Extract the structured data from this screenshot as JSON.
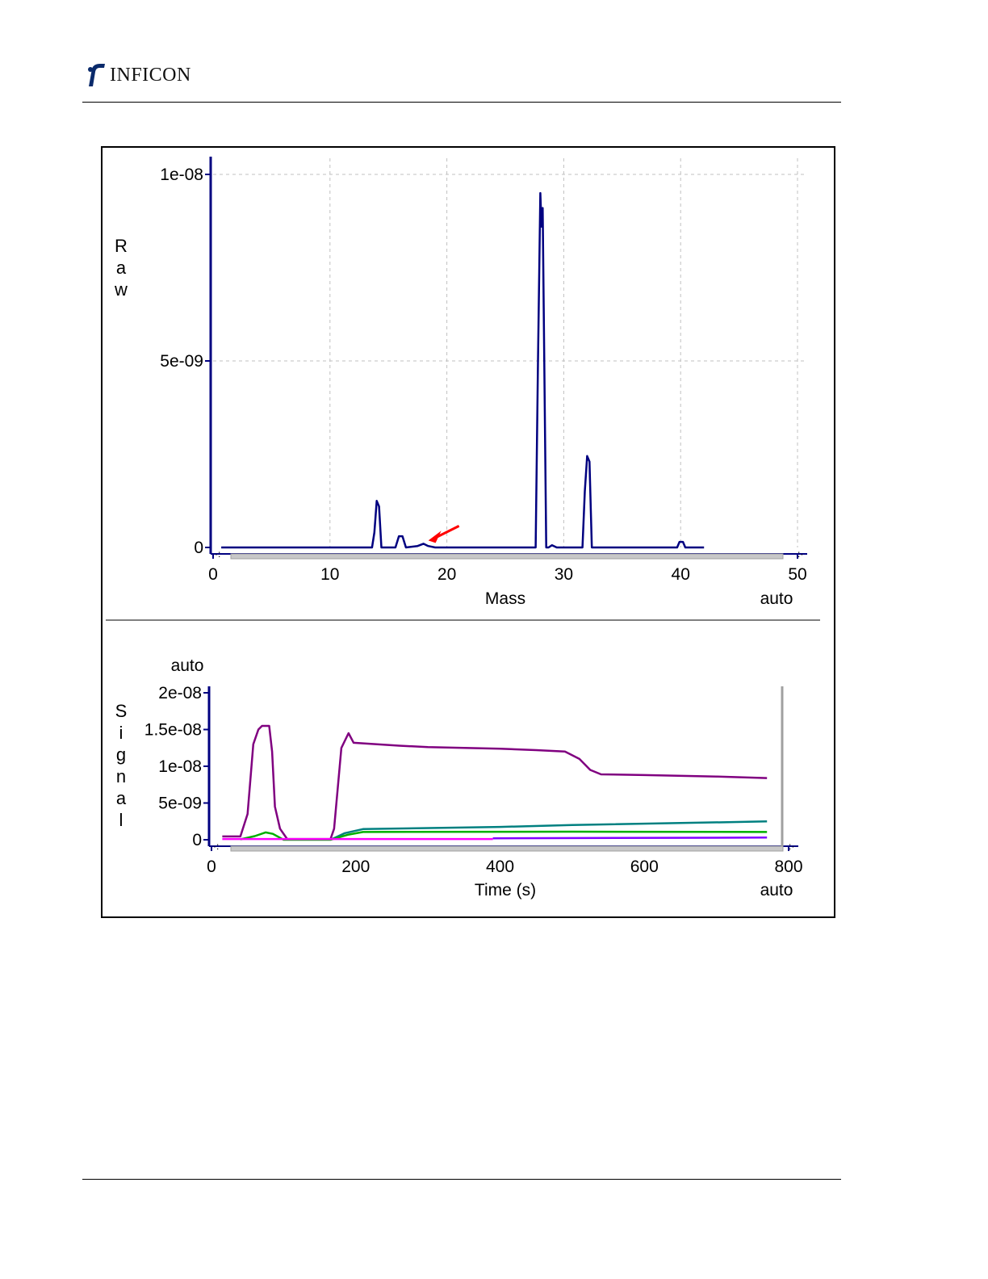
{
  "logo": {
    "text": "INFICON"
  },
  "chart_data": [
    {
      "type": "line",
      "title": "",
      "xlabel": "Mass",
      "ylabel": "Raw",
      "xlim": [
        0,
        50
      ],
      "ylim": [
        0,
        1e-08
      ],
      "x_ticks": [
        "0",
        "10",
        "20",
        "30",
        "40",
        "50"
      ],
      "y_ticks": [
        "0",
        "5e-09",
        "1e-08"
      ],
      "x_scale_label": "auto",
      "grid": true,
      "series": [
        {
          "color": "#000080",
          "points": [
            [
              0.7,
              0
            ],
            [
              13.6,
              0
            ],
            [
              13.8,
              4e-10
            ],
            [
              14.0,
              1.25e-09
            ],
            [
              14.2,
              1.1e-09
            ],
            [
              14.4,
              0
            ],
            [
              15.6,
              0
            ],
            [
              15.9,
              3e-10
            ],
            [
              16.2,
              3e-10
            ],
            [
              16.5,
              0
            ],
            [
              17.5,
              4e-11
            ],
            [
              18.0,
              1e-10
            ],
            [
              18.4,
              4e-11
            ],
            [
              19.0,
              0
            ],
            [
              27.6,
              0
            ],
            [
              27.8,
              5e-09
            ],
            [
              28.0,
              9.5e-09
            ],
            [
              28.1,
              8.6e-09
            ],
            [
              28.2,
              9.1e-09
            ],
            [
              28.5,
              0
            ],
            [
              28.7,
              0
            ],
            [
              29.0,
              6e-11
            ],
            [
              29.4,
              0
            ],
            [
              31.6,
              0
            ],
            [
              31.8,
              1.5e-09
            ],
            [
              32.0,
              2.45e-09
            ],
            [
              32.2,
              2.3e-09
            ],
            [
              32.4,
              0
            ],
            [
              39.7,
              0
            ],
            [
              39.9,
              1.5e-10
            ],
            [
              40.2,
              1.5e-10
            ],
            [
              40.4,
              0
            ],
            [
              42.0,
              0
            ]
          ]
        }
      ],
      "annotation": {
        "type": "arrow",
        "color": "#ff0000",
        "points_to": [
          18,
          1e-10
        ]
      }
    },
    {
      "type": "line",
      "title": "",
      "xlabel": "Time (s)",
      "ylabel": "Signal",
      "xlim": [
        0,
        800
      ],
      "ylim": [
        0,
        2e-08
      ],
      "x_ticks": [
        "0",
        "200",
        "400",
        "600",
        "800"
      ],
      "y_ticks": [
        "0",
        "5e-09",
        "1e-08",
        "1.5e-08",
        "2e-08"
      ],
      "x_scale_label": "auto",
      "y_scale_label": "auto",
      "grid": false,
      "series": [
        {
          "color": "#800080",
          "points": [
            [
              15,
              4.5e-10
            ],
            [
              40,
              4.5e-10
            ],
            [
              50,
              3.5e-09
            ],
            [
              58,
              1.3e-08
            ],
            [
              65,
              1.5e-08
            ],
            [
              70,
              1.55e-08
            ],
            [
              80,
              1.55e-08
            ],
            [
              84,
              1.2e-08
            ],
            [
              88,
              4.5e-09
            ],
            [
              95,
              1.5e-09
            ],
            [
              105,
              1e-10
            ],
            [
              165,
              1e-10
            ],
            [
              170,
              1.5e-09
            ],
            [
              180,
              1.25e-08
            ],
            [
              190,
              1.45e-08
            ],
            [
              197,
              1.32e-08
            ],
            [
              260,
              1.28e-08
            ],
            [
              300,
              1.26e-08
            ],
            [
              350,
              1.25e-08
            ],
            [
              400,
              1.24e-08
            ],
            [
              450,
              1.22e-08
            ],
            [
              490,
              1.2e-08
            ],
            [
              510,
              1.1e-08
            ],
            [
              525,
              9.5e-09
            ],
            [
              540,
              8.9e-09
            ],
            [
              600,
              8.8e-09
            ],
            [
              700,
              8.6e-09
            ],
            [
              770,
              8.4e-09
            ]
          ]
        },
        {
          "color": "#008080",
          "points": [
            [
              165,
              0
            ],
            [
              185,
              9e-10
            ],
            [
              210,
              1.45e-09
            ],
            [
              400,
              1.75e-09
            ],
            [
              500,
              2e-09
            ],
            [
              770,
              2.5e-09
            ]
          ]
        },
        {
          "color": "#00b000",
          "points": [
            [
              40,
              5e-11
            ],
            [
              60,
              5e-10
            ],
            [
              75,
              1e-09
            ],
            [
              85,
              8e-10
            ],
            [
              100,
              0
            ],
            [
              165,
              0
            ],
            [
              190,
              7e-10
            ],
            [
              210,
              1.05e-09
            ],
            [
              500,
              1.1e-09
            ],
            [
              770,
              1.05e-09
            ]
          ]
        },
        {
          "color": "#ff00ff",
          "points": [
            [
              15,
              1e-10
            ],
            [
              390,
              1e-10
            ]
          ]
        },
        {
          "color": "#8000ff",
          "points": [
            [
              390,
              2e-10
            ],
            [
              770,
              3e-10
            ]
          ]
        }
      ]
    }
  ]
}
